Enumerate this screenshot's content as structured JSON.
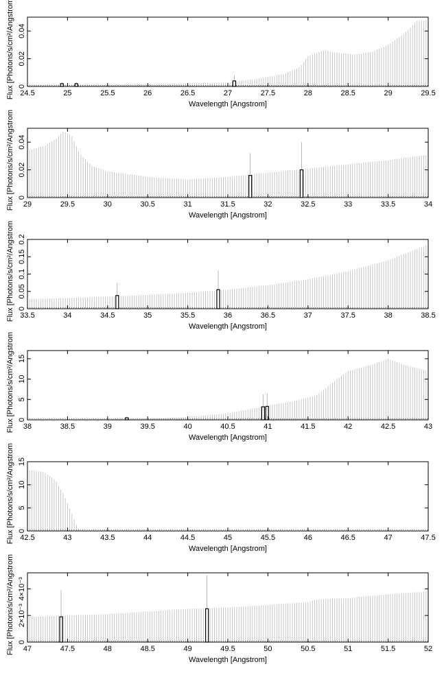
{
  "chart_data": [
    {
      "type": "bar",
      "xlabel": "Wavelength [Angstrom]",
      "ylabel": "Flux [Photons/s/cm²/Angstrom",
      "xlim": [
        24.5,
        29.5
      ],
      "ylim": [
        0,
        0.05
      ],
      "xticks": [
        "24.5",
        "25",
        "25.5",
        "26",
        "26.5",
        "27",
        "27.5",
        "28",
        "28.5",
        "29",
        "29.5"
      ],
      "yticks": [
        {
          "value": 0,
          "label": "0"
        },
        {
          "value": 0.02,
          "label": "0.02"
        },
        {
          "value": 0.04,
          "label": "0.04"
        }
      ],
      "continuum": [
        [
          24.5,
          0.0012
        ],
        [
          26.0,
          0.0015
        ],
        [
          27.0,
          0.003
        ],
        [
          27.3,
          0.005
        ],
        [
          27.7,
          0.009
        ],
        [
          27.9,
          0.014
        ],
        [
          28.0,
          0.022
        ],
        [
          28.2,
          0.026
        ],
        [
          28.4,
          0.024
        ],
        [
          28.6,
          0.023
        ],
        [
          28.8,
          0.025
        ],
        [
          29.0,
          0.03
        ],
        [
          29.2,
          0.038
        ],
        [
          29.35,
          0.047
        ],
        [
          29.5,
          0.048
        ]
      ],
      "lines": [
        {
          "x": 24.93,
          "y": 0.002,
          "peak": 0.003
        },
        {
          "x": 25.11,
          "y": 0.002,
          "peak": 0.003
        },
        {
          "x": 27.08,
          "y": 0.004,
          "peak": 0.008
        }
      ]
    },
    {
      "type": "bar",
      "xlabel": "Wavelength [Angstrom]",
      "ylabel": "Flux [Photons/s/cm²/Angstrom",
      "xlim": [
        29,
        34
      ],
      "ylim": [
        0,
        0.05
      ],
      "xticks": [
        "29",
        "29.5",
        "30",
        "30.5",
        "31",
        "31.5",
        "32",
        "32.5",
        "33",
        "33.5",
        "34"
      ],
      "yticks": [
        {
          "value": 0,
          "label": "0"
        },
        {
          "value": 0.02,
          "label": "0.02"
        },
        {
          "value": 0.04,
          "label": "0.04"
        }
      ],
      "continuum": [
        [
          29.0,
          0.034
        ],
        [
          29.2,
          0.037
        ],
        [
          29.35,
          0.042
        ],
        [
          29.45,
          0.048
        ],
        [
          29.55,
          0.045
        ],
        [
          29.65,
          0.032
        ],
        [
          29.8,
          0.023
        ],
        [
          30.0,
          0.019
        ],
        [
          30.5,
          0.015
        ],
        [
          31.0,
          0.013
        ],
        [
          31.5,
          0.015
        ],
        [
          32.0,
          0.018
        ],
        [
          32.5,
          0.021
        ],
        [
          33.0,
          0.024
        ],
        [
          33.5,
          0.027
        ],
        [
          34.0,
          0.031
        ]
      ],
      "lines": [
        {
          "x": 31.78,
          "y": 0.016,
          "peak": 0.032
        },
        {
          "x": 32.42,
          "y": 0.02,
          "peak": 0.04
        }
      ]
    },
    {
      "type": "bar",
      "xlabel": "Wavelength [Angstrom]",
      "ylabel": "Flux [Photons/s/cm²/Angstrom",
      "xlim": [
        33.5,
        38.5
      ],
      "ylim": [
        0,
        0.2
      ],
      "xticks": [
        "33.5",
        "34",
        "34.5",
        "35",
        "35.5",
        "36",
        "36.5",
        "37",
        "37.5",
        "38",
        "38.5"
      ],
      "yticks": [
        {
          "value": 0,
          "label": "0"
        },
        {
          "value": 0.05,
          "label": "0.05"
        },
        {
          "value": 0.1,
          "label": "0.1"
        },
        {
          "value": 0.15,
          "label": "0.15"
        },
        {
          "value": 0.2,
          "label": "0.2"
        }
      ],
      "continuum": [
        [
          33.5,
          0.028
        ],
        [
          34.0,
          0.031
        ],
        [
          34.5,
          0.035
        ],
        [
          35.0,
          0.04
        ],
        [
          35.5,
          0.046
        ],
        [
          36.0,
          0.055
        ],
        [
          36.5,
          0.068
        ],
        [
          37.0,
          0.085
        ],
        [
          37.5,
          0.108
        ],
        [
          38.0,
          0.14
        ],
        [
          38.5,
          0.185
        ]
      ],
      "lines": [
        {
          "x": 34.62,
          "y": 0.038,
          "peak": 0.075
        },
        {
          "x": 35.88,
          "y": 0.055,
          "peak": 0.11
        }
      ]
    },
    {
      "type": "bar",
      "xlabel": "Wavelength [Angstrom]",
      "ylabel": "Flux [Photons/s/cm²/Angstrom",
      "xlim": [
        38,
        43
      ],
      "ylim": [
        0,
        17
      ],
      "xticks": [
        "38",
        "38.5",
        "39",
        "39.5",
        "40",
        "40.5",
        "41",
        "41.5",
        "42",
        "42.5",
        "43"
      ],
      "yticks": [
        {
          "value": 0,
          "label": "0"
        },
        {
          "value": 5,
          "label": "5"
        },
        {
          "value": 10,
          "label": "10"
        },
        {
          "value": 15,
          "label": "15"
        }
      ],
      "continuum": [
        [
          38.0,
          0.05
        ],
        [
          39.0,
          0.1
        ],
        [
          39.5,
          0.3
        ],
        [
          40.0,
          0.7
        ],
        [
          40.5,
          1.6
        ],
        [
          41.0,
          3.5
        ],
        [
          41.3,
          4.5
        ],
        [
          41.6,
          6.0
        ],
        [
          41.8,
          9.0
        ],
        [
          42.0,
          12.0
        ],
        [
          42.3,
          13.5
        ],
        [
          42.5,
          15.0
        ],
        [
          42.7,
          13.5
        ],
        [
          43.0,
          12.0
        ]
      ],
      "lines": [
        {
          "x": 39.24,
          "y": 0.5,
          "peak": 0.8
        },
        {
          "x": 40.94,
          "y": 3.2,
          "peak": 6.2
        },
        {
          "x": 40.99,
          "y": 3.3,
          "peak": 6.6
        }
      ]
    },
    {
      "type": "bar",
      "xlabel": "Wavelength [Angstrom]",
      "ylabel": "Flux [Photons/s/cm²/Angstrom",
      "xlim": [
        42.5,
        47.5
      ],
      "ylim": [
        0,
        15
      ],
      "xticks": [
        "42.5",
        "43",
        "43.5",
        "44",
        "44.5",
        "45",
        "45.5",
        "46",
        "46.5",
        "47",
        "47.5"
      ],
      "yticks": [
        {
          "value": 0,
          "label": "0"
        },
        {
          "value": 5,
          "label": "5"
        },
        {
          "value": 10,
          "label": "10"
        },
        {
          "value": 15,
          "label": "15"
        }
      ],
      "continuum": [
        [
          42.5,
          13.2
        ],
        [
          42.7,
          12.8
        ],
        [
          42.85,
          11.0
        ],
        [
          42.95,
          8.0
        ],
        [
          43.05,
          4.0
        ],
        [
          43.12,
          1.0
        ],
        [
          43.16,
          0.0
        ],
        [
          47.5,
          0.0
        ]
      ],
      "lines": []
    },
    {
      "type": "bar",
      "xlabel": "Wavelength [Angstrom]",
      "ylabel": "Flux [Photons/s/cm²/Angstrom",
      "xlim": [
        47,
        52
      ],
      "ylim": [
        0,
        0.0052
      ],
      "xticks": [
        "47",
        "47.5",
        "48",
        "48.5",
        "49",
        "49.5",
        "50",
        "50.5",
        "51",
        "51.5",
        "52"
      ],
      "yticks": [
        {
          "value": 0,
          "label": "0"
        },
        {
          "value": 0.002,
          "label": "2×10⁻³"
        },
        {
          "value": 0.004,
          "label": "4×10⁻³"
        }
      ],
      "continuum": [
        [
          47.0,
          0.0019
        ],
        [
          47.5,
          0.002
        ],
        [
          48.0,
          0.0021
        ],
        [
          48.5,
          0.0023
        ],
        [
          49.0,
          0.0025
        ],
        [
          49.5,
          0.0026
        ],
        [
          50.0,
          0.0028
        ],
        [
          50.5,
          0.003
        ],
        [
          50.6,
          0.0032
        ],
        [
          51.0,
          0.0033
        ],
        [
          51.5,
          0.0036
        ],
        [
          52.0,
          0.0038
        ]
      ],
      "lines": [
        {
          "x": 47.42,
          "y": 0.0019,
          "peak": 0.0039
        },
        {
          "x": 49.24,
          "y": 0.0025,
          "peak": 0.005
        }
      ]
    }
  ]
}
